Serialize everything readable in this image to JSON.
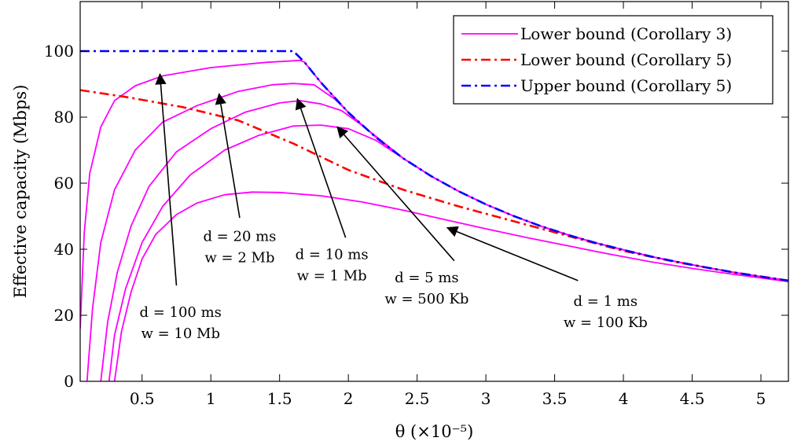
{
  "chart_data": {
    "type": "line",
    "xlabel": "θ (×10⁻⁵)",
    "ylabel": "Effective capacity (Mbps)",
    "xlim": [
      0.05,
      5.2
    ],
    "ylim": [
      0,
      115
    ],
    "xticks": [
      0.5,
      1,
      1.5,
      2,
      2.5,
      3,
      3.5,
      4,
      4.5,
      5
    ],
    "yticks": [
      0,
      20,
      40,
      60,
      80,
      100
    ],
    "grid": false,
    "legend_position": "top-right",
    "legend": [
      {
        "label": "Lower bound (Corollary 3)",
        "color": "#ff00ff",
        "style": "solid"
      },
      {
        "label": "Lower bound (Corollary 5)",
        "color": "#ff0000",
        "style": "dash-dot"
      },
      {
        "label": "Upper bound (Corollary 5)",
        "color": "#0000ff",
        "style": "dash-dot"
      }
    ],
    "series": [
      {
        "name": "Upper bound (Corollary 5)",
        "color": "#0000ff",
        "style": "dash-dot",
        "points": [
          [
            0.05,
            100
          ],
          [
            1.6,
            100
          ],
          [
            1.68,
            96.7
          ],
          [
            1.8,
            90.5
          ],
          [
            2.0,
            81.4
          ],
          [
            2.2,
            73.9
          ],
          [
            2.4,
            67.5
          ],
          [
            2.6,
            62.2
          ],
          [
            2.8,
            57.6
          ],
          [
            3.0,
            53.6
          ],
          [
            3.2,
            50.1
          ],
          [
            3.4,
            47.0
          ],
          [
            3.6,
            44.3
          ],
          [
            3.8,
            41.9
          ],
          [
            4.0,
            39.8
          ],
          [
            4.2,
            37.8
          ],
          [
            4.4,
            36.1
          ],
          [
            4.6,
            34.5
          ],
          [
            4.8,
            33.0
          ],
          [
            5.0,
            31.7
          ],
          [
            5.2,
            30.5
          ]
        ]
      },
      {
        "name": "Lower bound (Corollary 5)",
        "color": "#ff0000",
        "style": "dash-dot",
        "points": [
          [
            0.05,
            88.2
          ],
          [
            0.4,
            86.0
          ],
          [
            0.8,
            83.0
          ],
          [
            1.2,
            79.0
          ],
          [
            1.6,
            72.0
          ],
          [
            2.0,
            64.0
          ],
          [
            2.4,
            58.0
          ],
          [
            2.8,
            53.0
          ],
          [
            3.2,
            48.5
          ],
          [
            3.6,
            44.0
          ],
          [
            4.0,
            39.5
          ],
          [
            4.4,
            36.0
          ],
          [
            4.8,
            33.0
          ],
          [
            5.2,
            30.5
          ]
        ]
      },
      {
        "name": "d = 100 ms, w = 10 Mb",
        "color": "#ff00ff",
        "style": "solid",
        "points": [
          [
            0.05,
            16
          ],
          [
            0.08,
            45
          ],
          [
            0.12,
            63
          ],
          [
            0.2,
            77
          ],
          [
            0.3,
            85
          ],
          [
            0.45,
            89.5
          ],
          [
            0.65,
            92.5
          ],
          [
            1.0,
            95
          ],
          [
            1.4,
            96.6
          ],
          [
            1.65,
            97.2
          ],
          [
            1.68,
            96.7
          ],
          [
            1.8,
            90.5
          ],
          [
            2.0,
            81.4
          ],
          [
            2.2,
            73.9
          ],
          [
            2.4,
            67.5
          ],
          [
            2.6,
            62.2
          ],
          [
            2.8,
            57.6
          ],
          [
            3.0,
            53.6
          ],
          [
            3.2,
            50.1
          ],
          [
            3.4,
            47.0
          ],
          [
            3.6,
            44.3
          ],
          [
            3.8,
            41.9
          ],
          [
            4.0,
            39.8
          ],
          [
            4.2,
            37.8
          ],
          [
            4.4,
            36.1
          ],
          [
            4.6,
            34.5
          ],
          [
            4.8,
            33.0
          ],
          [
            5.0,
            31.7
          ],
          [
            5.2,
            30.5
          ]
        ]
      },
      {
        "name": "d = 20 ms, w = 2 Mb",
        "color": "#ff00ff",
        "style": "solid",
        "points": [
          [
            0.1,
            0
          ],
          [
            0.14,
            22
          ],
          [
            0.2,
            42
          ],
          [
            0.3,
            58
          ],
          [
            0.45,
            70
          ],
          [
            0.65,
            78.5
          ],
          [
            0.9,
            83.5
          ],
          [
            1.2,
            87.8
          ],
          [
            1.45,
            89.8
          ],
          [
            1.6,
            90.2
          ],
          [
            1.75,
            89.8
          ],
          [
            1.9,
            85.5
          ],
          [
            2.1,
            77.5
          ],
          [
            2.4,
            67.5
          ],
          [
            2.6,
            62.2
          ],
          [
            2.8,
            57.6
          ],
          [
            3.0,
            53.6
          ],
          [
            3.2,
            50.1
          ],
          [
            3.4,
            47.0
          ],
          [
            3.6,
            44.3
          ],
          [
            3.8,
            41.9
          ],
          [
            4.0,
            39.8
          ],
          [
            4.2,
            37.8
          ],
          [
            4.4,
            36.1
          ],
          [
            4.6,
            34.5
          ],
          [
            4.8,
            33.0
          ],
          [
            5.0,
            31.7
          ],
          [
            5.2,
            30.5
          ]
        ]
      },
      {
        "name": "d = 10 ms, w = 1 Mb",
        "color": "#ff00ff",
        "style": "solid",
        "points": [
          [
            0.2,
            0
          ],
          [
            0.25,
            18
          ],
          [
            0.32,
            33
          ],
          [
            0.42,
            47
          ],
          [
            0.55,
            59
          ],
          [
            0.75,
            69.5
          ],
          [
            1.0,
            76.5
          ],
          [
            1.25,
            81.5
          ],
          [
            1.5,
            84.3
          ],
          [
            1.65,
            85.0
          ],
          [
            1.8,
            84.0
          ],
          [
            1.95,
            82.0
          ],
          [
            2.1,
            77.5
          ],
          [
            2.4,
            67.5
          ],
          [
            2.6,
            62.2
          ],
          [
            2.8,
            57.6
          ],
          [
            3.0,
            53.6
          ],
          [
            3.2,
            50.1
          ],
          [
            3.4,
            47.0
          ],
          [
            3.6,
            44.3
          ],
          [
            3.8,
            41.9
          ],
          [
            4.0,
            39.8
          ],
          [
            4.2,
            37.8
          ],
          [
            4.4,
            36.1
          ],
          [
            4.6,
            34.5
          ],
          [
            4.8,
            33.0
          ],
          [
            5.0,
            31.7
          ],
          [
            5.2,
            30.5
          ]
        ]
      },
      {
        "name": "d = 5 ms, w = 500 Kb",
        "color": "#ff00ff",
        "style": "solid",
        "points": [
          [
            0.26,
            0
          ],
          [
            0.3,
            14
          ],
          [
            0.38,
            28
          ],
          [
            0.5,
            42
          ],
          [
            0.65,
            53
          ],
          [
            0.85,
            62.5
          ],
          [
            1.1,
            70
          ],
          [
            1.35,
            74.5
          ],
          [
            1.6,
            77.3
          ],
          [
            1.8,
            77.6
          ],
          [
            2.0,
            76.5
          ],
          [
            2.2,
            73.0
          ],
          [
            2.4,
            67.5
          ],
          [
            2.6,
            62.2
          ],
          [
            2.8,
            57.6
          ],
          [
            3.0,
            53.6
          ],
          [
            3.2,
            50.1
          ],
          [
            3.4,
            47.0
          ],
          [
            3.6,
            44.3
          ],
          [
            3.8,
            41.9
          ],
          [
            4.0,
            39.8
          ],
          [
            4.2,
            37.8
          ],
          [
            4.4,
            36.1
          ],
          [
            4.6,
            34.5
          ],
          [
            4.8,
            33.0
          ],
          [
            5.0,
            31.7
          ],
          [
            5.2,
            30.5
          ]
        ]
      },
      {
        "name": "d = 1 ms, w = 100 Kb",
        "color": "#ff00ff",
        "style": "solid",
        "points": [
          [
            0.3,
            0
          ],
          [
            0.35,
            15
          ],
          [
            0.42,
            27
          ],
          [
            0.5,
            37
          ],
          [
            0.6,
            44.5
          ],
          [
            0.75,
            50.5
          ],
          [
            0.9,
            54
          ],
          [
            1.1,
            56.5
          ],
          [
            1.3,
            57.3
          ],
          [
            1.5,
            57.2
          ],
          [
            1.8,
            56.2
          ],
          [
            2.1,
            54.3
          ],
          [
            2.4,
            51.8
          ],
          [
            2.7,
            49.0
          ],
          [
            3.0,
            46.2
          ],
          [
            3.3,
            43.5
          ],
          [
            3.6,
            41.0
          ],
          [
            3.9,
            38.5
          ],
          [
            4.2,
            36.2
          ],
          [
            4.5,
            34.2
          ],
          [
            4.8,
            32.4
          ],
          [
            5.0,
            31.3
          ],
          [
            5.2,
            30.2
          ]
        ]
      }
    ],
    "annotations": [
      {
        "line1": "d = 100 ms",
        "line2": "w = 10 Mb",
        "text_at": [
          0.78,
          19.5
        ],
        "arrow_from": [
          0.75,
          29
        ],
        "arrow_to": [
          0.63,
          93
        ]
      },
      {
        "line1": "d = 20 ms",
        "line2": "w = 2 Mb",
        "text_at": [
          1.21,
          42.5
        ],
        "arrow_from": [
          1.21,
          49.5
        ],
        "arrow_to": [
          1.06,
          87
        ]
      },
      {
        "line1": "d = 10 ms",
        "line2": "w = 1 Mb",
        "text_at": [
          1.88,
          37
        ],
        "arrow_from": [
          1.98,
          43.5
        ],
        "arrow_to": [
          1.63,
          85.5
        ]
      },
      {
        "line1": "d = 5 ms",
        "line2": "w = 500 Kb",
        "text_at": [
          2.57,
          30
        ],
        "arrow_from": [
          2.77,
          36.5
        ],
        "arrow_to": [
          1.92,
          77
        ]
      },
      {
        "line1": "d = 1 ms",
        "line2": "w = 100 Kb",
        "text_at": [
          3.87,
          22.8
        ],
        "arrow_from": [
          3.67,
          30.5
        ],
        "arrow_to": [
          2.72,
          46.5
        ]
      }
    ]
  }
}
